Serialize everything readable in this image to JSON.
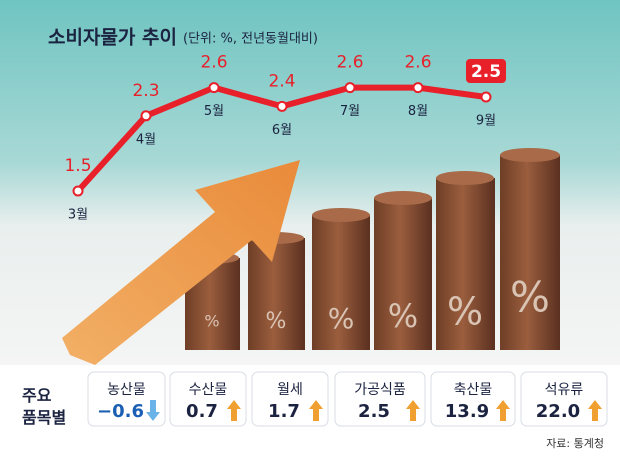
{
  "chart_data": {
    "type": "line",
    "title": "소비자물가 추이",
    "subtitle": "(단위: %, 전년동월대비)",
    "categories": [
      "3월",
      "4월",
      "5월",
      "6월",
      "7월",
      "8월",
      "9월"
    ],
    "values": [
      1.5,
      2.3,
      2.6,
      2.4,
      2.6,
      2.6,
      2.5
    ],
    "color": "#e8202a"
  },
  "items": {
    "title": "주요\n품목별",
    "list": [
      {
        "name": "농산물",
        "value": "−0.6",
        "trend": "down"
      },
      {
        "name": "수산물",
        "value": "0.7",
        "trend": "up"
      },
      {
        "name": "월세",
        "value": "1.7",
        "trend": "up"
      },
      {
        "name": "가공식품",
        "value": "2.5",
        "trend": "up"
      },
      {
        "name": "축산물",
        "value": "13.9",
        "trend": "up"
      },
      {
        "name": "석유류",
        "value": "22.0",
        "trend": "up"
      }
    ]
  },
  "source": "자료: 통계청"
}
